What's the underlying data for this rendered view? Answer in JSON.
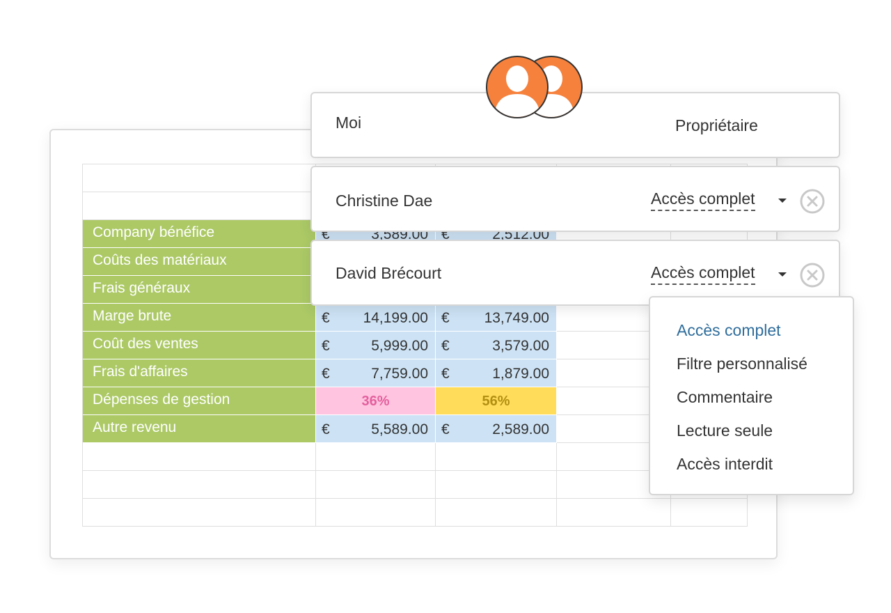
{
  "sheet": {
    "rows": [
      {
        "label": "Company bénéfice",
        "v1": "3,589.00",
        "v2": "2,512.00"
      },
      {
        "label": "Coûts des matériaux"
      },
      {
        "label": "Frais généraux"
      },
      {
        "label": "Marge brute",
        "v1": "14,199.00",
        "v2": "13,749.00"
      },
      {
        "label": "Coût des ventes",
        "v1": "5,999.00",
        "v2": "3,579.00"
      },
      {
        "label": "Frais d'affaires",
        "v1": "7,759.00",
        "v2": "1,879.00"
      },
      {
        "label": "Dépenses de gestion",
        "p1": "36%",
        "p2": "56%"
      },
      {
        "label": "Autre revenu",
        "v1": "5,589.00",
        "v2": "2,589.00"
      }
    ],
    "currency": "€"
  },
  "sharing": {
    "owner": {
      "name": "Moi",
      "role": "Propriétaire"
    },
    "users": [
      {
        "name": "Christine Dae",
        "access": "Accès complet"
      },
      {
        "name": "David Brécourt",
        "access": "Accès complet"
      }
    ]
  },
  "dropdown": {
    "options": [
      "Accès complet",
      "Filtre personnalisé",
      "Commentaire",
      "Lecture seule",
      "Accès interdit"
    ],
    "selected": "Accès complet"
  },
  "colors": {
    "label_green": "#acc966",
    "value_blue": "#cde3f5",
    "pct_pink": "#ffc5e0",
    "pct_yellow": "#ffdc5a",
    "avatar_orange": "#f6813d",
    "selected_option": "#2f6d9c"
  }
}
